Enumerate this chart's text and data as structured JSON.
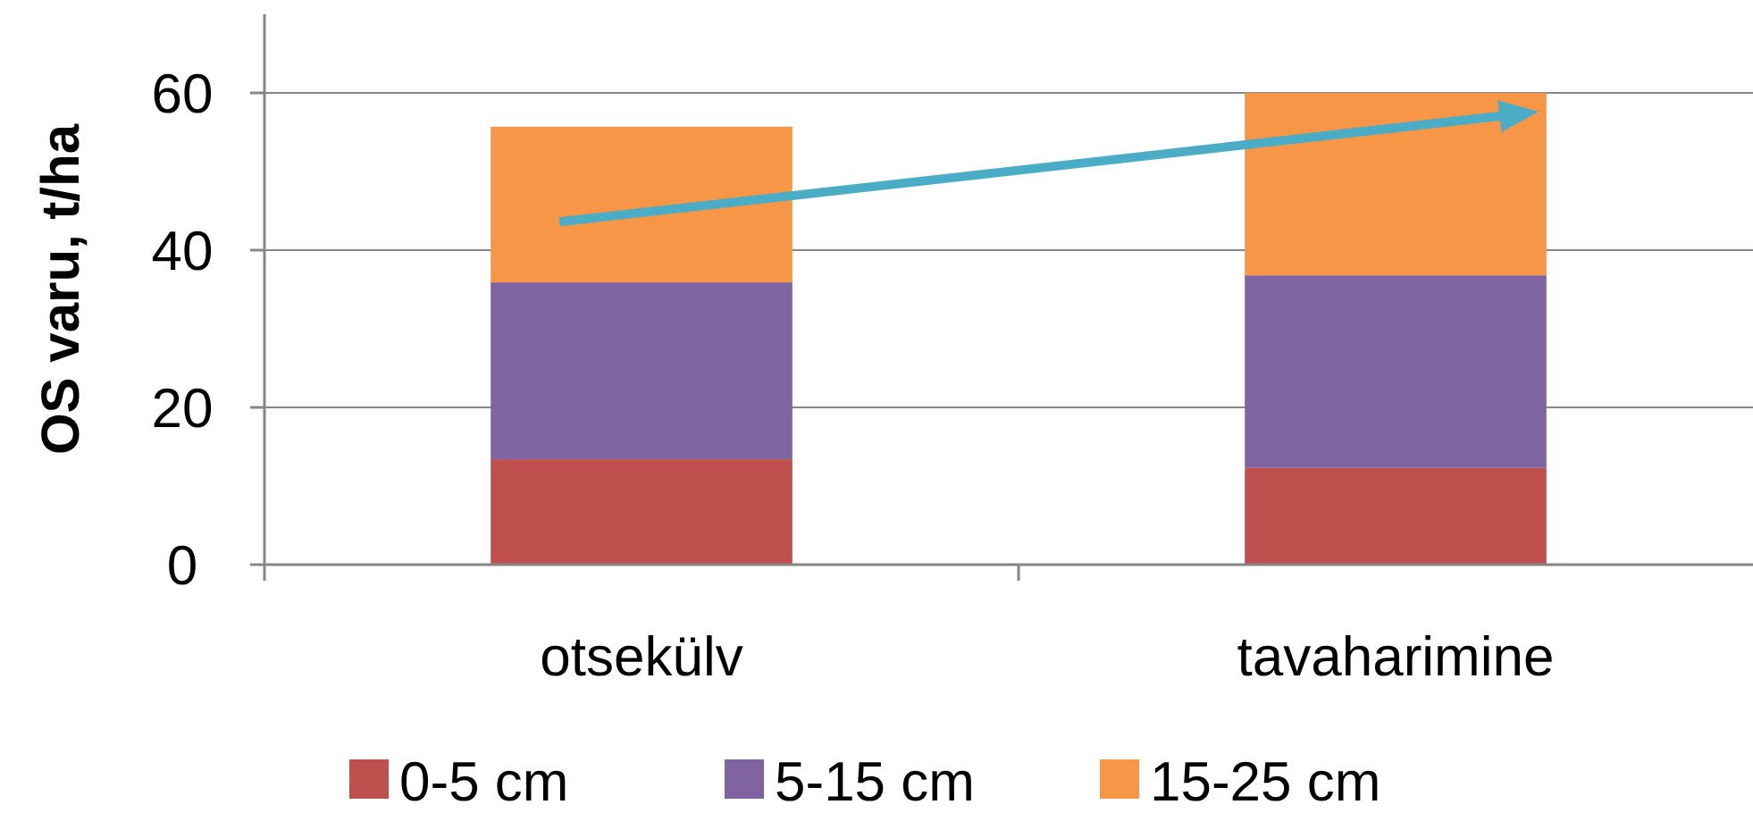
{
  "chart_data": {
    "type": "bar",
    "stacked": true,
    "ylabel": "OS varu, t/ha",
    "categories": [
      "otsekülv",
      "tavaharimine"
    ],
    "series": [
      {
        "name": "0-5 cm",
        "color": "#c0504d",
        "values": [
          13.4,
          12.3
        ]
      },
      {
        "name": "5-15 cm",
        "color": "#8064a2",
        "values": [
          22.5,
          24.5
        ]
      },
      {
        "name": "15-25 cm",
        "color": "#f79646",
        "values": [
          19.8,
          23.2
        ]
      }
    ],
    "ylim": [
      0,
      70
    ],
    "yticks": [
      0,
      20,
      40,
      60
    ],
    "grid": "y",
    "legend": "bottom"
  }
}
